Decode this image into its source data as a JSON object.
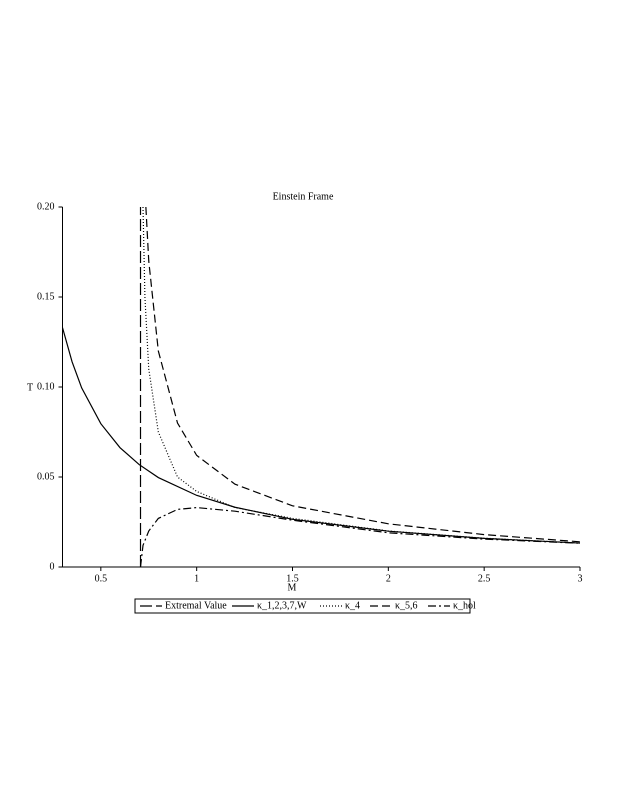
{
  "chart_data": {
    "type": "line",
    "title": "Einstein Frame",
    "x_label": "M",
    "y_label": "T",
    "xlim": [
      0.3,
      3
    ],
    "ylim": [
      0,
      0.2
    ],
    "xticks": [
      0.5,
      1,
      1.5,
      2,
      2.5,
      3
    ],
    "yticks": [
      0,
      0.05,
      {
        "value": 0.1,
        "label": "0.10"
      },
      0.15,
      {
        "value": 0.2,
        "label": "0.20"
      }
    ],
    "legend": "bottom",
    "series": [
      {
        "name": "Extremal Value",
        "color": "#000000",
        "dash": "12,4",
        "x": [
          0.707,
          0.707
        ],
        "values": [
          0,
          0.2
        ]
      },
      {
        "name": "κ_1,2,3,7,W",
        "color": "#000000",
        "dash": "none",
        "x": [
          0.3,
          0.35,
          0.4,
          0.5,
          0.6,
          0.7,
          0.8,
          1,
          1.2,
          1.5,
          2,
          2.5,
          3
        ],
        "values": [
          0.133,
          0.114,
          0.0995,
          0.0796,
          0.0663,
          0.0569,
          0.0497,
          0.0398,
          0.0332,
          0.0265,
          0.0199,
          0.0159,
          0.0133
        ]
      },
      {
        "name": "κ_4",
        "color": "#000000",
        "dash": "1,2",
        "x": [
          0.72,
          0.73,
          0.75,
          0.8,
          0.9,
          1,
          1.2,
          1.5,
          2,
          2.5,
          3
        ],
        "values": [
          0.2,
          0.15,
          0.11,
          0.075,
          0.05,
          0.042,
          0.033,
          0.027,
          0.02,
          0.016,
          0.0133
        ]
      },
      {
        "name": "κ_5,6",
        "color": "#000000",
        "dash": "8,4",
        "x": [
          0.735,
          0.75,
          0.8,
          0.9,
          1,
          1.2,
          1.5,
          2,
          2.5,
          3
        ],
        "values": [
          0.2,
          0.17,
          0.12,
          0.08,
          0.062,
          0.046,
          0.034,
          0.024,
          0.018,
          0.014
        ]
      },
      {
        "name": "κ_hol",
        "color": "#000000",
        "dash": "8,3,2,3",
        "x": [
          0.707,
          0.72,
          0.75,
          0.8,
          0.9,
          1,
          1.2,
          1.5,
          2,
          2.5,
          3
        ],
        "values": [
          0,
          0.012,
          0.02,
          0.027,
          0.032,
          0.033,
          0.031,
          0.026,
          0.019,
          0.0155,
          0.0132
        ]
      }
    ]
  }
}
